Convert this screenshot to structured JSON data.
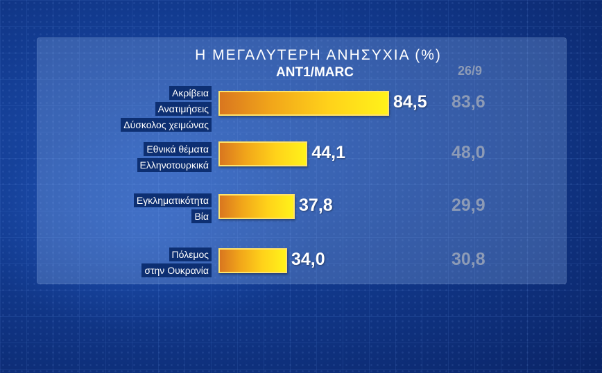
{
  "chart_data": {
    "type": "bar",
    "orientation": "horizontal",
    "title": "Η ΜΕΓΑΛΥΤΕΡΗ ΑΝΗΣΥΧΙΑ (%)",
    "subtitle": "ANT1/MARC",
    "comparison_label": "26/9",
    "categories": [
      [
        "Ακρίβεια",
        "Ανατιμήσεις",
        "Δύσκολος χειμώνας"
      ],
      [
        "Εθνικά θέματα",
        "Ελληνοτουρκικά"
      ],
      [
        "Εγκληματικότητα",
        "Βία"
      ],
      [
        "Πόλεμος",
        "στην Ουκρανία"
      ]
    ],
    "values": [
      84.5,
      44.1,
      37.8,
      34.0
    ],
    "value_labels": [
      "84,5",
      "44,1",
      "37,8",
      "34,0"
    ],
    "previous_values": [
      83.6,
      48.0,
      29.9,
      30.8
    ],
    "previous_labels": [
      "83,6",
      "48,0",
      "29,9",
      "30,8"
    ],
    "colors": {
      "bar_start": "#d9761f",
      "bar_end": "#fff21a",
      "current_value": "#ffffff",
      "previous_value": "#8d9bb6",
      "label_bg": "#0d2f72"
    }
  }
}
